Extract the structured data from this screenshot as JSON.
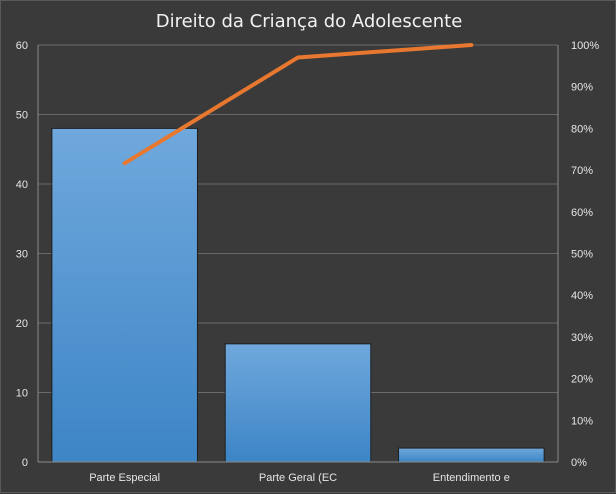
{
  "chart_data": {
    "type": "bar",
    "title": "Direito da Criança do Adolescente",
    "categories": [
      "Parte Especial",
      "Parte Geral (EC",
      "Entendimento e"
    ],
    "series": [
      {
        "type": "bar",
        "values": [
          48,
          17,
          2
        ]
      },
      {
        "type": "line",
        "values": [
          0.7164,
          0.9701,
          1.0
        ]
      }
    ],
    "y_axis": {
      "ylim": [
        0,
        60
      ],
      "ticks": [
        "0",
        "10",
        "20",
        "30",
        "40",
        "50",
        "60"
      ],
      "tick_values": [
        0,
        10,
        20,
        30,
        40,
        50,
        60
      ]
    },
    "y2_axis": {
      "ylim": [
        0,
        1
      ],
      "ticks": [
        "0%",
        "10%",
        "20%",
        "30%",
        "40%",
        "50%",
        "60%",
        "70%",
        "80%",
        "90%",
        "100%"
      ],
      "tick_values": [
        0,
        0.1,
        0.2,
        0.3,
        0.4,
        0.5,
        0.6,
        0.7,
        0.8,
        0.9,
        1.0
      ]
    },
    "grid": true,
    "legend": "none",
    "colors": {
      "background": "#3a3a3a",
      "bar_top": "#6fa8dc",
      "bar_bottom": "#3d85c6",
      "bar_border": "#1f1f1f",
      "line": "#e8782f",
      "grid": "#6a6a6a",
      "axis": "#8a8a8a"
    }
  }
}
